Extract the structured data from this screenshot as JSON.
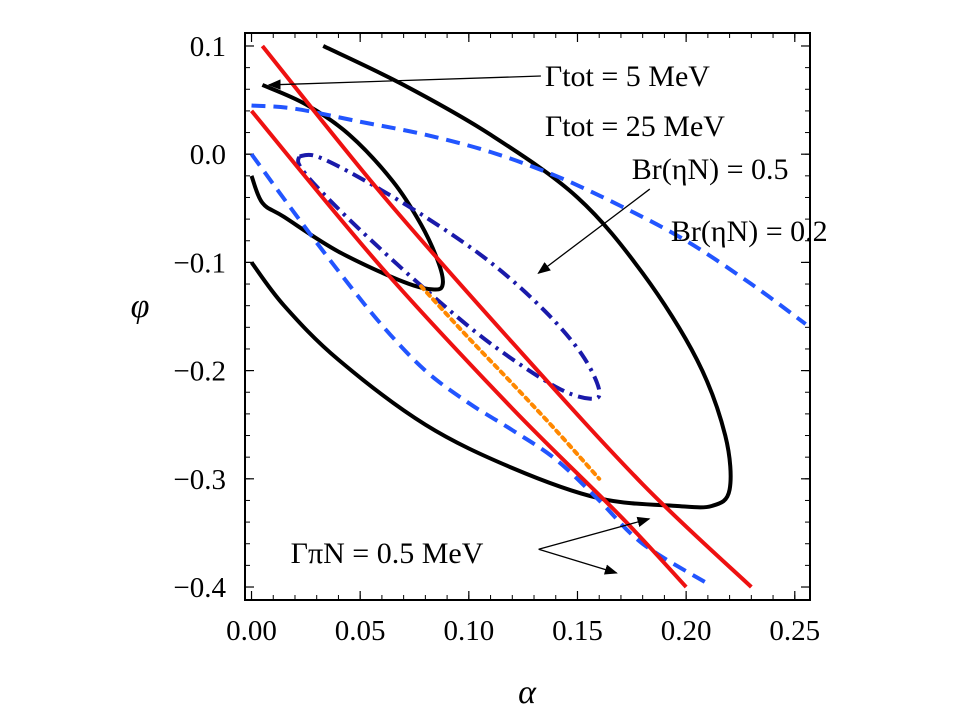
{
  "chart_data": {
    "type": "line",
    "xlabel": "α",
    "ylabel": "φ",
    "xlim": [
      -0.003,
      0.257
    ],
    "ylim": [
      -0.412,
      0.112
    ],
    "grid": false,
    "x_ticks": [
      "0.00",
      "0.05",
      "0.10",
      "0.15",
      "0.20",
      "0.25"
    ],
    "y_ticks": [
      "0.1",
      "0.0",
      "−0.1",
      "−0.2",
      "−0.3",
      "−0.4"
    ],
    "x_tick_values": [
      0.0,
      0.05,
      0.1,
      0.15,
      0.2,
      0.25
    ],
    "y_tick_values": [
      0.1,
      0.0,
      -0.1,
      -0.2,
      -0.3,
      -0.4
    ],
    "series": [
      {
        "name": "Γtot = 5 MeV",
        "color": "#000000",
        "style": "solid",
        "points": [
          [
            0.005,
            0.064
          ],
          [
            0.025,
            0.046
          ],
          [
            0.045,
            0.018
          ],
          [
            0.065,
            -0.025
          ],
          [
            0.078,
            -0.065
          ],
          [
            0.086,
            -0.1
          ],
          [
            0.088,
            -0.12
          ],
          [
            0.084,
            -0.125
          ],
          [
            0.07,
            -0.118
          ],
          [
            0.04,
            -0.09
          ],
          [
            0.015,
            -0.058
          ],
          [
            0.005,
            -0.045
          ],
          [
            0.0,
            -0.02
          ]
        ]
      },
      {
        "name": "Γtot = 25 MeV",
        "color": "#000000",
        "style": "solid",
        "points": [
          [
            0.033,
            0.1
          ],
          [
            0.07,
            0.064
          ],
          [
            0.11,
            0.018
          ],
          [
            0.15,
            -0.04
          ],
          [
            0.18,
            -0.11
          ],
          [
            0.205,
            -0.19
          ],
          [
            0.218,
            -0.26
          ],
          [
            0.22,
            -0.31
          ],
          [
            0.212,
            -0.325
          ],
          [
            0.195,
            -0.325
          ],
          [
            0.16,
            -0.318
          ],
          [
            0.12,
            -0.29
          ],
          [
            0.08,
            -0.25
          ],
          [
            0.04,
            -0.19
          ],
          [
            0.015,
            -0.14
          ],
          [
            0.0,
            -0.1
          ]
        ]
      },
      {
        "name": "Br(ηN) = 0.5",
        "color": "#1a1aaa",
        "style": "dashdot",
        "points": [
          [
            0.022,
            -0.002
          ],
          [
            0.03,
            -0.002
          ],
          [
            0.05,
            -0.022
          ],
          [
            0.08,
            -0.058
          ],
          [
            0.11,
            -0.1
          ],
          [
            0.135,
            -0.145
          ],
          [
            0.152,
            -0.185
          ],
          [
            0.16,
            -0.218
          ],
          [
            0.156,
            -0.226
          ],
          [
            0.14,
            -0.215
          ],
          [
            0.11,
            -0.175
          ],
          [
            0.08,
            -0.125
          ],
          [
            0.05,
            -0.07
          ],
          [
            0.03,
            -0.03
          ],
          [
            0.022,
            -0.01
          ],
          [
            0.022,
            -0.002
          ]
        ]
      },
      {
        "name": "Br(ηN) = 0.2",
        "color": "#2255ff",
        "style": "dashed",
        "points": [
          [
            0.0,
            0.045
          ],
          [
            0.02,
            0.042
          ],
          [
            0.05,
            0.03
          ],
          [
            0.08,
            0.018
          ],
          [
            0.11,
            0.002
          ],
          [
            0.14,
            -0.02
          ],
          [
            0.17,
            -0.048
          ],
          [
            0.2,
            -0.08
          ],
          [
            0.23,
            -0.12
          ],
          [
            0.255,
            -0.157
          ]
        ]
      },
      {
        "name": "Br(ηN) = 0.2 lower",
        "color": "#2255ff",
        "style": "dashed",
        "points": [
          [
            0.0,
            0.0
          ],
          [
            0.02,
            -0.055
          ],
          [
            0.04,
            -0.108
          ],
          [
            0.06,
            -0.158
          ],
          [
            0.08,
            -0.2
          ],
          [
            0.1,
            -0.23
          ],
          [
            0.12,
            -0.255
          ],
          [
            0.14,
            -0.282
          ],
          [
            0.16,
            -0.32
          ],
          [
            0.18,
            -0.36
          ],
          [
            0.21,
            -0.397
          ]
        ]
      },
      {
        "name": "ΓπN = 0.5 MeV upper",
        "color": "#ee1111",
        "style": "solid",
        "points": [
          [
            0.005,
            0.1
          ],
          [
            0.06,
            -0.037
          ],
          [
            0.12,
            -0.174
          ],
          [
            0.18,
            -0.305
          ],
          [
            0.23,
            -0.4
          ]
        ]
      },
      {
        "name": "ΓπN = 0.5 MeV lower",
        "color": "#ee1111",
        "style": "solid",
        "points": [
          [
            0.0,
            0.04
          ],
          [
            0.06,
            -0.105
          ],
          [
            0.12,
            -0.235
          ],
          [
            0.17,
            -0.335
          ],
          [
            0.2,
            -0.4
          ]
        ]
      },
      {
        "name": "orange dotted",
        "color": "#ff8800",
        "style": "dotted",
        "points": [
          [
            0.078,
            -0.122
          ],
          [
            0.1,
            -0.17
          ],
          [
            0.12,
            -0.212
          ],
          [
            0.14,
            -0.255
          ],
          [
            0.16,
            -0.3
          ]
        ]
      }
    ],
    "annotations": [
      {
        "text": "Γtot = 5 MeV",
        "at": [
          0.135,
          0.063
        ],
        "arrow_to": [
          0.008,
          0.064
        ]
      },
      {
        "text": "Γtot = 25 MeV",
        "at": [
          0.135,
          0.017
        ]
      },
      {
        "text": "Br(ηN) = 0.5",
        "at": [
          0.175,
          -0.023
        ],
        "arrow_to": [
          0.132,
          -0.11
        ]
      },
      {
        "text": "Br(ηN) = 0.2",
        "at": [
          0.193,
          -0.08
        ]
      },
      {
        "text": "ΓπN = 0.5 MeV",
        "at": [
          0.018,
          -0.378
        ],
        "arrow_to": [
          [
            0.183,
            -0.337
          ],
          [
            0.168,
            -0.387
          ]
        ]
      }
    ]
  }
}
